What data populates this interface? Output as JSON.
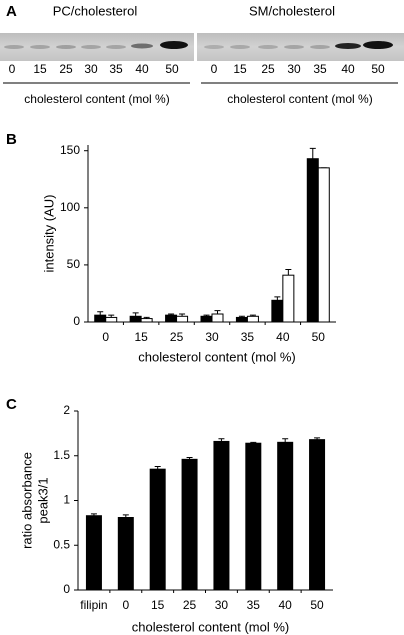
{
  "panel_a": {
    "panel_label": "A",
    "gels": [
      {
        "title": "PC/cholesterol",
        "lanes": [
          "0",
          "15",
          "25",
          "30",
          "35",
          "40",
          "50"
        ],
        "x_label": "cholesterol content (mol %)"
      },
      {
        "title": "SM/cholesterol",
        "lanes": [
          "0",
          "15",
          "25",
          "30",
          "35",
          "40",
          "50"
        ],
        "x_label": "cholesterol content (mol %)"
      }
    ]
  },
  "chart_data": [
    {
      "type": "bar",
      "panel_label": "B",
      "y_label": "intensity (AU)",
      "x_label": "cholesterol content (mol %)",
      "categories": [
        "0",
        "15",
        "25",
        "30",
        "35",
        "40",
        "50"
      ],
      "series": [
        {
          "color": "#000000",
          "values": [
            6,
            5,
            6,
            5,
            4,
            19,
            143
          ],
          "errors": [
            3,
            3,
            1,
            1,
            1,
            3,
            9
          ]
        },
        {
          "color": "#ffffff",
          "values": [
            4,
            3,
            5,
            7,
            5,
            41,
            135
          ],
          "errors": [
            2,
            1,
            2,
            3,
            1,
            5,
            0
          ]
        }
      ],
      "ylim": [
        0,
        155
      ],
      "yticks": [
        0,
        50,
        100,
        150
      ]
    },
    {
      "type": "bar",
      "panel_label": "C",
      "y_label": [
        "ratio absorbance",
        "peak3/1"
      ],
      "x_label": "cholesterol content (mol %)",
      "categories": [
        "filipin",
        "0",
        "15",
        "25",
        "30",
        "35",
        "40",
        "50"
      ],
      "series": [
        {
          "color": "#000000",
          "values": [
            0.83,
            0.81,
            1.35,
            1.46,
            1.66,
            1.64,
            1.65,
            1.68
          ],
          "errors": [
            0.02,
            0.03,
            0.03,
            0.02,
            0.03,
            0.01,
            0.04,
            0.02
          ]
        }
      ],
      "ylim": [
        0,
        2
      ],
      "yticks": [
        0,
        0.5,
        1,
        1.5,
        2
      ]
    }
  ]
}
